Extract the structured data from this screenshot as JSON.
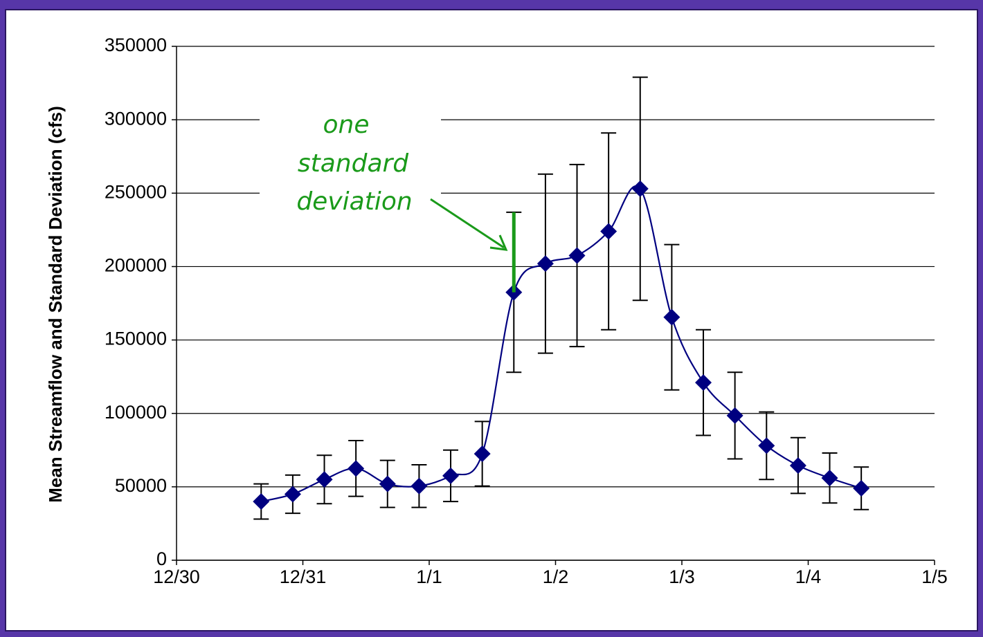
{
  "chart_data": {
    "type": "line",
    "y_label": "Mean Streamflow and Standard Deviation (cfs)",
    "annotation_lines": [
      "one",
      "standard",
      "deviation"
    ],
    "annotation_color": "#1a9a1a",
    "annotation_point": 8,
    "grid": true,
    "smooth": true,
    "xlim": [
      0,
      6
    ],
    "xticks": [
      {
        "value": 0,
        "label": "12/30"
      },
      {
        "value": 1,
        "label": "12/31"
      },
      {
        "value": 2,
        "label": "1/1"
      },
      {
        "value": 3,
        "label": "1/2"
      },
      {
        "value": 4,
        "label": "1/3"
      },
      {
        "value": 5,
        "label": "1/4"
      },
      {
        "value": 6,
        "label": "1/5"
      }
    ],
    "ylim": [
      0,
      350000
    ],
    "yticks": [
      0,
      50000,
      100000,
      150000,
      200000,
      250000,
      300000,
      350000
    ],
    "x": [
      0.67,
      0.92,
      1.17,
      1.42,
      1.67,
      1.92,
      2.17,
      2.42,
      2.67,
      2.92,
      3.17,
      3.42,
      3.67,
      3.92,
      4.17,
      4.42,
      4.67,
      4.92,
      5.17,
      5.42
    ],
    "series": [
      {
        "color": "#000080",
        "values": [
          40000,
          45000,
          55000,
          62500,
          52000,
          50500,
          57500,
          72500,
          182500,
          202000,
          207500,
          224000,
          253000,
          165500,
          121000,
          98500,
          78000,
          64500,
          56000,
          49000
        ],
        "errors": [
          12000,
          13000,
          16500,
          19000,
          16000,
          14500,
          17500,
          22000,
          54500,
          61000,
          62000,
          67000,
          76000,
          49500,
          36000,
          29500,
          23000,
          19000,
          17000,
          14500
        ]
      }
    ]
  }
}
